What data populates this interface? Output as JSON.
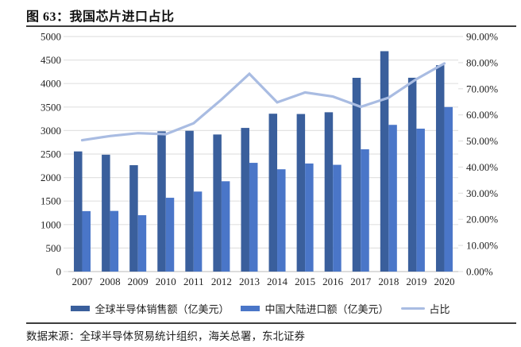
{
  "figure": {
    "title": "图 63：我国芯片进口占比",
    "source": "数据来源：全球半导体贸易统计组织，海关总署，东北证券"
  },
  "chart_data": {
    "type": "bar",
    "subtype": "combo-bar-line-dual-axis",
    "title": "我国芯片进口占比",
    "categories": [
      "2007",
      "2008",
      "2009",
      "2010",
      "2011",
      "2012",
      "2013",
      "2014",
      "2015",
      "2016",
      "2017",
      "2018",
      "2019",
      "2020"
    ],
    "series": [
      {
        "name": "全球半导体销售额（亿美元）",
        "type": "bar",
        "axis": "left",
        "color": "#3A5F9C",
        "values": [
          2556,
          2486,
          2263,
          2983,
          2995,
          2916,
          3056,
          3358,
          3352,
          3389,
          4122,
          4688,
          4123,
          4390
        ]
      },
      {
        "name": "中国大陆进口额（亿美元）",
        "type": "bar",
        "axis": "left",
        "color": "#4A76C8",
        "values": [
          1286,
          1290,
          1199,
          1570,
          1702,
          1921,
          2313,
          2176,
          2299,
          2271,
          2601,
          3121,
          3040,
          3500
        ]
      },
      {
        "name": "占比",
        "type": "line",
        "axis": "right",
        "color": "#A9BCE2",
        "values": [
          50.3,
          51.9,
          53.0,
          52.6,
          56.8,
          65.9,
          75.7,
          64.8,
          68.6,
          67.0,
          63.1,
          66.6,
          73.7,
          79.7
        ]
      }
    ],
    "left_axis": {
      "min": 0,
      "max": 5000,
      "step": 500,
      "tick_labels": [
        "0",
        "500",
        "1000",
        "1500",
        "2000",
        "2500",
        "3000",
        "3500",
        "4000",
        "4500",
        "5000"
      ]
    },
    "right_axis": {
      "min": 0,
      "max": 90,
      "step": 10,
      "tick_labels": [
        "0.00%",
        "10.00%",
        "20.00%",
        "30.00%",
        "40.00%",
        "50.00%",
        "60.00%",
        "70.00%",
        "80.00%",
        "90.00%"
      ]
    },
    "grid": true,
    "legend_position": "bottom",
    "colors": {
      "grid": "#E2E2E2",
      "axis_line": "#C6C6C6",
      "tick_text": "#1f1f1f"
    }
  }
}
